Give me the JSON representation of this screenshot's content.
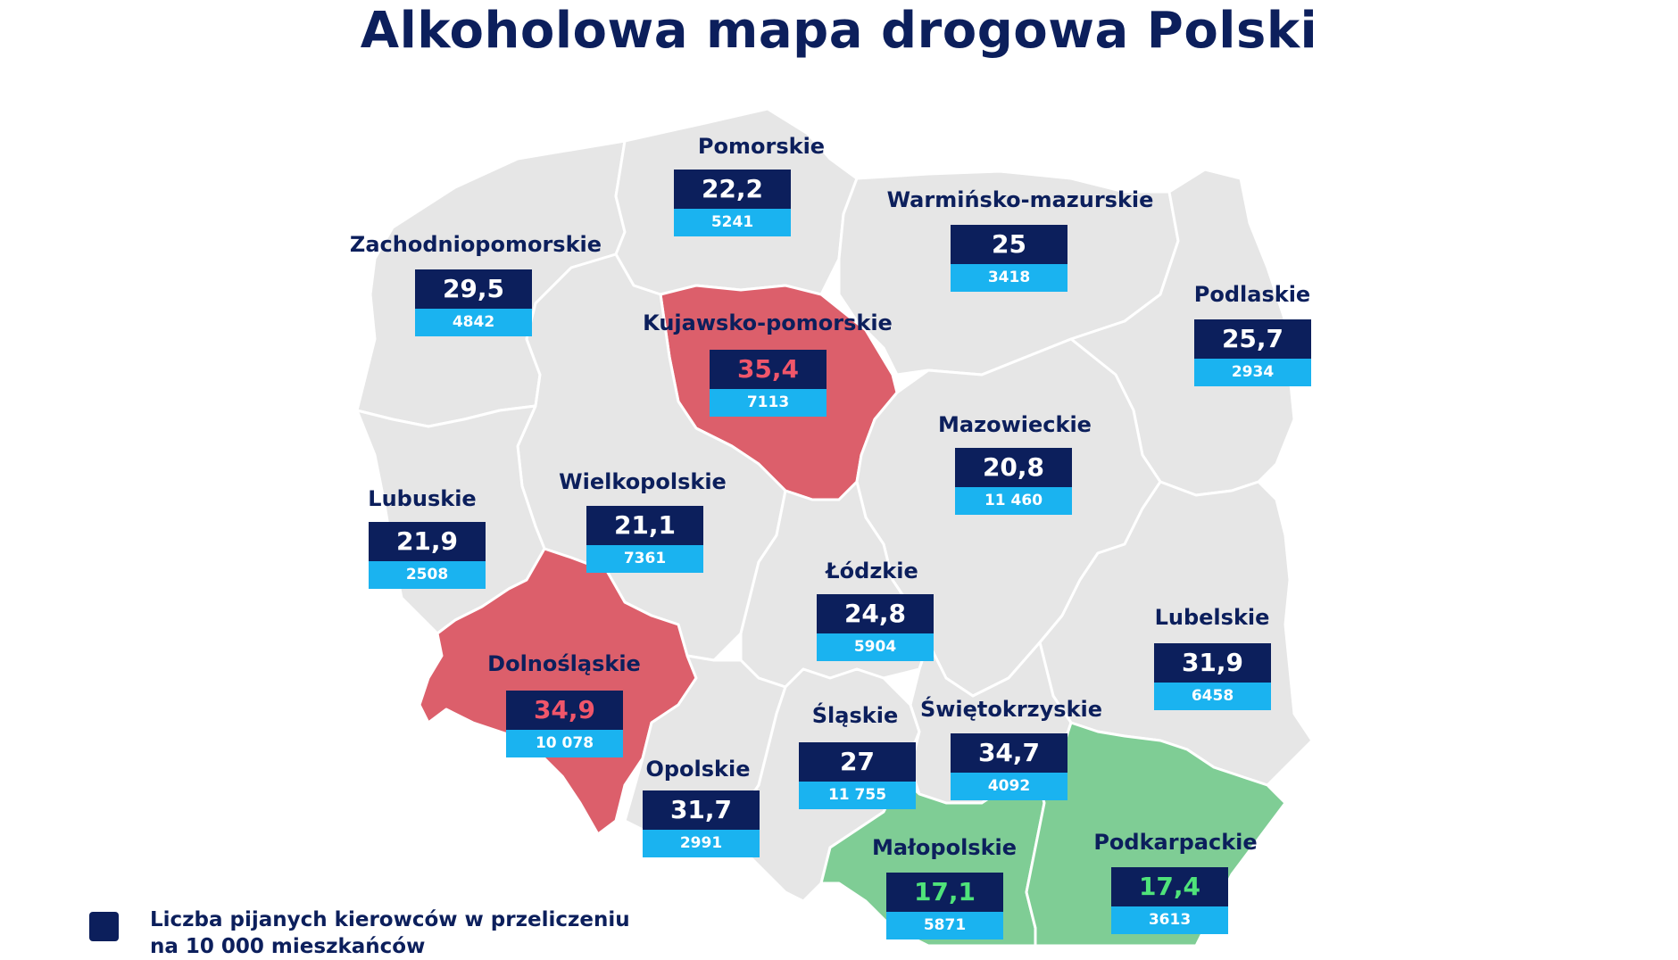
{
  "title": "Alkoholowa mapa drogowa Polski",
  "colors": {
    "base": "#e6e6e6",
    "high": "#dc5f6b",
    "low": "#7fcd95",
    "value_box": "#0c1f5c",
    "count_box": "#1ab3f0"
  },
  "legend": {
    "text": "Liczba pijanych kierowców w przeliczeniu na 10 000 mieszkańców"
  },
  "voivodeships": [
    {
      "id": "pomorskie",
      "name": "Pomorskie",
      "value": "22,2",
      "count": "5241",
      "category": "base"
    },
    {
      "id": "warminsko-mazurskie",
      "name": "Warmińsko-mazurskie",
      "value": "25",
      "count": "3418",
      "category": "base"
    },
    {
      "id": "zachodniopomorskie",
      "name": "Zachodniopomorskie",
      "value": "29,5",
      "count": "4842",
      "category": "base"
    },
    {
      "id": "podlaskie",
      "name": "Podlaskie",
      "value": "25,7",
      "count": "2934",
      "category": "base"
    },
    {
      "id": "kujawsko-pomorskie",
      "name": "Kujawsko-pomorskie",
      "value": "35,4",
      "count": "7113",
      "category": "high"
    },
    {
      "id": "mazowieckie",
      "name": "Mazowieckie",
      "value": "20,8",
      "count": "11 460",
      "category": "base"
    },
    {
      "id": "lubuskie",
      "name": "Lubuskie",
      "value": "21,9",
      "count": "2508",
      "category": "base"
    },
    {
      "id": "wielkopolskie",
      "name": "Wielkopolskie",
      "value": "21,1",
      "count": "7361",
      "category": "base"
    },
    {
      "id": "lodzkie",
      "name": "Łódzkie",
      "value": "24,8",
      "count": "5904",
      "category": "base"
    },
    {
      "id": "lubelskie",
      "name": "Lubelskie",
      "value": "31,9",
      "count": "6458",
      "category": "base"
    },
    {
      "id": "dolnoslaskie",
      "name": "Dolnośląskie",
      "value": "34,9",
      "count": "10 078",
      "category": "high"
    },
    {
      "id": "slaskie",
      "name": "Śląskie",
      "value": "27",
      "count": "11 755",
      "category": "base"
    },
    {
      "id": "swietokrzyskie",
      "name": "Świętokrzyskie",
      "value": "34,7",
      "count": "4092",
      "category": "base"
    },
    {
      "id": "opolskie",
      "name": "Opolskie",
      "value": "31,7",
      "count": "2991",
      "category": "base"
    },
    {
      "id": "malopolskie",
      "name": "Małopolskie",
      "value": "17,1",
      "count": "5871",
      "category": "low"
    },
    {
      "id": "podkarpackie",
      "name": "Podkarpackie",
      "value": "17,4",
      "count": "3613",
      "category": "low"
    }
  ]
}
